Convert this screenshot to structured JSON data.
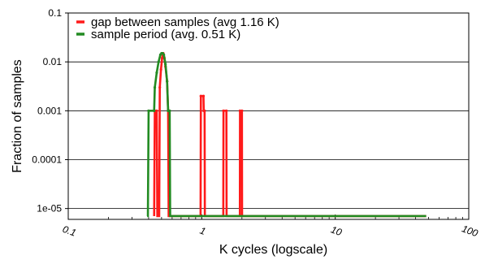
{
  "chart_data": {
    "type": "line",
    "title": "",
    "xlabel": "K cycles (logscale)",
    "ylabel": "Fraction of samples",
    "xscale": "log",
    "yscale": "log",
    "xlim": [
      0.1,
      100
    ],
    "ylim": [
      6e-06,
      0.1
    ],
    "xticks": [
      {
        "value": 0.1,
        "label": "0.1"
      },
      {
        "value": 1,
        "label": "1"
      },
      {
        "value": 10,
        "label": "10"
      },
      {
        "value": 100,
        "label": "100"
      }
    ],
    "yticks": [
      {
        "value": 0.1,
        "label": "0.1"
      },
      {
        "value": 0.01,
        "label": "0.01"
      },
      {
        "value": 0.001,
        "label": "0.001"
      },
      {
        "value": 0.0001,
        "label": "0.0001"
      },
      {
        "value": 1e-05,
        "label": "1e-05"
      }
    ],
    "grid": "horizontal",
    "legend": "top-left",
    "baseline": 7e-06,
    "series": [
      {
        "name": "gap between samples (avg 1.16 K)",
        "color": "#ff1a1a",
        "points": [
          [
            0.44,
            7e-06
          ],
          [
            0.445,
            0.001
          ],
          [
            0.46,
            0.001
          ],
          [
            0.465,
            7e-06
          ],
          [
            0.48,
            7e-06
          ],
          [
            0.485,
            0.003
          ],
          [
            0.495,
            0.007
          ],
          [
            0.505,
            0.012
          ],
          [
            0.515,
            0.015
          ],
          [
            0.525,
            0.012
          ],
          [
            0.535,
            0.008
          ],
          [
            0.55,
            0.004
          ],
          [
            0.56,
            0.001
          ],
          [
            0.565,
            7e-06
          ],
          [
            0.98,
            7e-06
          ],
          [
            0.985,
            0.002
          ],
          [
            1.03,
            0.002
          ],
          [
            1.035,
            0.001
          ],
          [
            1.05,
            0.001
          ],
          [
            1.055,
            7e-06
          ],
          [
            1.45,
            7e-06
          ],
          [
            1.455,
            0.001
          ],
          [
            1.53,
            0.001
          ],
          [
            1.535,
            7e-06
          ],
          [
            1.93,
            7e-06
          ],
          [
            1.935,
            0.001
          ],
          [
            2.0,
            0.001
          ],
          [
            2.005,
            7e-06
          ],
          [
            48,
            7e-06
          ]
        ]
      },
      {
        "name": "sample period (avg. 0.51 K)",
        "color": "#228b22",
        "points": [
          [
            0.39,
            7e-06
          ],
          [
            0.395,
            7e-06
          ],
          [
            0.4,
            0.001
          ],
          [
            0.44,
            0.001
          ],
          [
            0.445,
            0.003
          ],
          [
            0.46,
            0.006
          ],
          [
            0.475,
            0.01
          ],
          [
            0.49,
            0.014
          ],
          [
            0.5,
            0.015
          ],
          [
            0.51,
            0.015
          ],
          [
            0.52,
            0.014
          ],
          [
            0.535,
            0.009
          ],
          [
            0.55,
            0.004
          ],
          [
            0.56,
            0.001
          ],
          [
            0.575,
            0.001
          ],
          [
            0.58,
            7e-06
          ],
          [
            48,
            7e-06
          ]
        ]
      }
    ]
  }
}
